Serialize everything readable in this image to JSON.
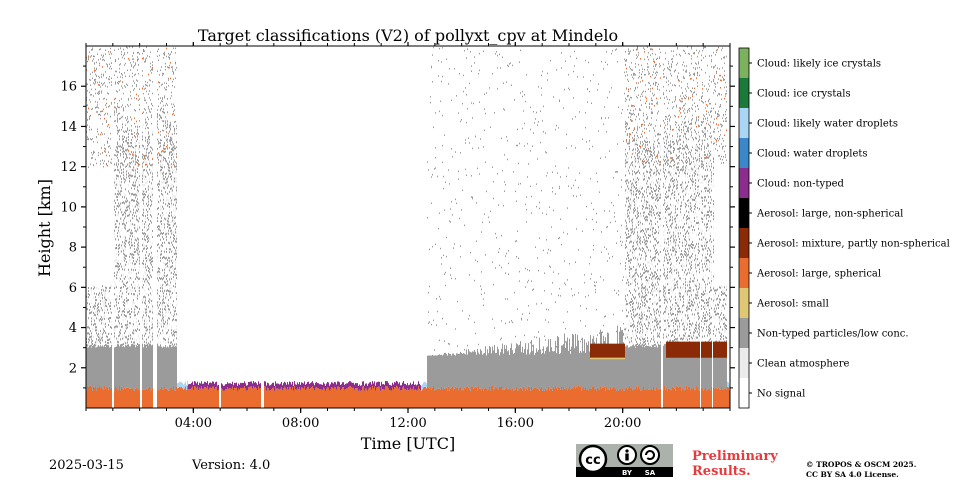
{
  "chart_data": {
    "type": "heatmap",
    "title": "Target classifications (V2) of pollyxt_cpv at Mindelo",
    "xlabel": "Time [UTC]",
    "ylabel": "Height [km]",
    "xlim": [
      0,
      24
    ],
    "ylim": [
      0,
      18
    ],
    "x_ticks": [
      {
        "value": 4,
        "label": "04:00"
      },
      {
        "value": 8,
        "label": "08:00"
      },
      {
        "value": 12,
        "label": "12:00"
      },
      {
        "value": 16,
        "label": "16:00"
      },
      {
        "value": 20,
        "label": "20:00"
      }
    ],
    "y_ticks": [
      {
        "value": 2,
        "label": "2"
      },
      {
        "value": 4,
        "label": "4"
      },
      {
        "value": 6,
        "label": "6"
      },
      {
        "value": 8,
        "label": "8"
      },
      {
        "value": 10,
        "label": "10"
      },
      {
        "value": 12,
        "label": "12"
      },
      {
        "value": 14,
        "label": "14"
      },
      {
        "value": 16,
        "label": "16"
      }
    ],
    "legend": [
      {
        "label": "No signal",
        "color": "#ffffff"
      },
      {
        "label": "Clean atmosphere",
        "color": "#ebebeb"
      },
      {
        "label": "Non-typed particles/low conc.",
        "color": "#9b9b9b"
      },
      {
        "label": "Aerosol: small",
        "color": "#e0c773"
      },
      {
        "label": "Aerosol: large, spherical",
        "color": "#ea6d2f"
      },
      {
        "label": "Aerosol: mixture, partly non-spherical",
        "color": "#8a2a07"
      },
      {
        "label": "Aerosol: large, non-spherical",
        "color": "#000000"
      },
      {
        "label": "Cloud: non-typed",
        "color": "#8a2d8c"
      },
      {
        "label": "Cloud: water droplets",
        "color": "#3a88c9"
      },
      {
        "label": "Cloud: likely water droplets",
        "color": "#a9d6f5"
      },
      {
        "label": "Cloud: ice crystals",
        "color": "#1b7a3a"
      },
      {
        "label": "Cloud: likely ice crystals",
        "color": "#7cb15e"
      }
    ],
    "legend_placement": "right colorbar"
  },
  "footer": {
    "date": "2025-03-15",
    "version": "Version: 4.0",
    "preliminary_line1": "Preliminary",
    "preliminary_line2": "Results.",
    "copyright_line1": "© TROPOS & OSCM 2025.",
    "copyright_line2": "CC BY SA 4.0 License.",
    "cc_by": "BY",
    "cc_sa": "SA",
    "cc_mark": "cc"
  }
}
